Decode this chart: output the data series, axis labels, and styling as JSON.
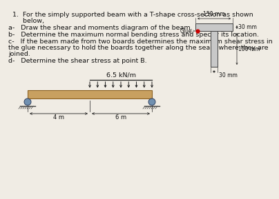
{
  "title_line1": "1.  For the simply supported beam with a T-shape cross-section as shown",
  "title_line2": "     below,",
  "item_a": "a-   Draw the shear and moments diagram of the beam.",
  "item_b": "b-   Determine the maximum normal bending stress and specify its location.",
  "item_c_line1": "c-   If the beam made from two boards determines the maximum shear stress in",
  "item_c_line2": "the glue necessary to hold the boards together along the seam where they are",
  "item_c_line3": "joined.",
  "item_d": "d-   Determine the shear stress at point B.",
  "load_label": "6.5 kN/m",
  "dim_4m": "4 m",
  "dim_6m": "6 m",
  "dim_150mm_top": "150 mm",
  "dim_30mm_right1": "30 mm",
  "dim_150mm_right2": "150 mm",
  "dim_30mm_bot": "30 mm",
  "glue_label": "Glue",
  "bg_color": "#f0ece4",
  "beam_fill": "#c8a060",
  "beam_edge": "#8b6020",
  "cross_fill": "#c8c8c8",
  "cross_edge": "#404040",
  "arrow_color": "#202020",
  "dim_color": "#202020",
  "text_color": "#111111",
  "glue_color": "#cc0000",
  "support_fill": "#909090",
  "support_edge": "#404040",
  "text_fs": 6.8,
  "label_fs": 6.0
}
